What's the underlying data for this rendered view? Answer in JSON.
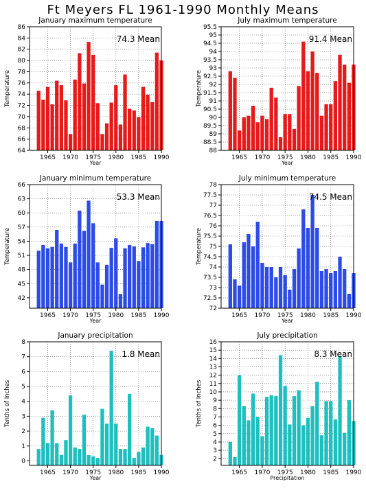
{
  "page_title": "Ft Meyers FL  1961-1990 Monthly Means",
  "colors": {
    "red": "#e61a1a",
    "blue": "#2d4be6",
    "teal": "#1fbfbf"
  },
  "chart_data": [
    {
      "type": "bar",
      "title": "January maximum temperature",
      "ylabel": "Temperature",
      "xlabel": "Year",
      "mean_label": "74.3 Mean",
      "color": "#e61a1a",
      "x": [
        1961,
        1962,
        1963,
        1964,
        1965,
        1966,
        1967,
        1968,
        1969,
        1970,
        1971,
        1972,
        1973,
        1974,
        1975,
        1976,
        1977,
        1978,
        1979,
        1980,
        1981,
        1982,
        1983,
        1984,
        1985,
        1986,
        1987,
        1988,
        1989,
        1990
      ],
      "values": [
        null,
        null,
        74.6,
        73.0,
        75.3,
        72.2,
        76.4,
        75.6,
        72.9,
        66.9,
        76.6,
        81.3,
        75.9,
        83.3,
        81.0,
        72.4,
        66.9,
        68.8,
        72.5,
        75.6,
        68.6,
        77.5,
        71.4,
        71.1,
        69.9,
        75.3,
        73.9,
        72.6,
        81.4,
        80.0
      ],
      "ylim": [
        64,
        86
      ],
      "yticks": [
        64,
        66,
        68,
        70,
        72,
        74,
        76,
        78,
        80,
        82,
        84,
        86
      ],
      "xlim": [
        1961,
        1990
      ],
      "xticks": [
        1965,
        1970,
        1975,
        1980,
        1985,
        1990
      ]
    },
    {
      "type": "bar",
      "title": "July maximum temperature",
      "ylabel": "Temperature",
      "xlabel": "Year",
      "mean_label": "91.4 Mean",
      "color": "#e61a1a",
      "x": [
        1961,
        1962,
        1963,
        1964,
        1965,
        1966,
        1967,
        1968,
        1969,
        1970,
        1971,
        1972,
        1973,
        1974,
        1975,
        1976,
        1977,
        1978,
        1979,
        1980,
        1981,
        1982,
        1983,
        1984,
        1985,
        1986,
        1987,
        1988,
        1989,
        1990
      ],
      "values": [
        null,
        null,
        92.8,
        92.4,
        89.2,
        90.0,
        90.1,
        90.7,
        89.7,
        90.1,
        89.9,
        91.8,
        91.2,
        88.8,
        90.2,
        90.2,
        89.3,
        91.9,
        94.6,
        92.8,
        94.0,
        92.7,
        90.1,
        90.8,
        90.8,
        92.2,
        93.8,
        93.2,
        92.1,
        93.2
      ],
      "ylim": [
        88,
        95.5
      ],
      "yticks": [
        88,
        88.5,
        89,
        89.5,
        90,
        90.5,
        91,
        91.5,
        92,
        92.5,
        93,
        93.5,
        94,
        94.5,
        95,
        95.5
      ],
      "xlim": [
        1961,
        1990
      ],
      "xticks": [
        1965,
        1970,
        1975,
        1980,
        1985,
        1990
      ]
    },
    {
      "type": "bar",
      "title": "January minimum temperature",
      "ylabel": "Temperature",
      "xlabel": "Year",
      "mean_label": "53.3 Mean",
      "color": "#2d4be6",
      "x": [
        1961,
        1962,
        1963,
        1964,
        1965,
        1966,
        1967,
        1968,
        1969,
        1970,
        1971,
        1972,
        1973,
        1974,
        1975,
        1976,
        1977,
        1978,
        1979,
        1980,
        1981,
        1982,
        1983,
        1984,
        1985,
        1986,
        1987,
        1988,
        1989,
        1990
      ],
      "values": [
        null,
        null,
        52.0,
        53.2,
        52.5,
        52.8,
        56.4,
        53.5,
        52.8,
        49.5,
        53.5,
        60.5,
        56.2,
        62.6,
        57.8,
        49.5,
        44.8,
        49.0,
        52.6,
        54.6,
        42.8,
        52.5,
        53.2,
        52.9,
        49.8,
        52.7,
        53.6,
        53.4,
        58.3,
        58.3
      ],
      "ylim": [
        39.8,
        66
      ],
      "yticks": [
        42,
        45,
        48,
        51,
        54,
        57,
        60,
        63,
        66
      ],
      "xlim": [
        1961,
        1990
      ],
      "xticks": [
        1965,
        1970,
        1975,
        1980,
        1985,
        1990
      ]
    },
    {
      "type": "bar",
      "title": "July minimum temperature",
      "ylabel": "Temperature",
      "xlabel": "Year",
      "mean_label": "74.5 Mean",
      "color": "#2d4be6",
      "x": [
        1961,
        1962,
        1963,
        1964,
        1965,
        1966,
        1967,
        1968,
        1969,
        1970,
        1971,
        1972,
        1973,
        1974,
        1975,
        1976,
        1977,
        1978,
        1979,
        1980,
        1981,
        1982,
        1983,
        1984,
        1985,
        1986,
        1987,
        1988,
        1989,
        1990
      ],
      "values": [
        null,
        null,
        75.1,
        73.4,
        73.1,
        75.2,
        75.6,
        75.0,
        76.2,
        74.2,
        74.0,
        74.0,
        73.5,
        74.0,
        73.6,
        72.9,
        73.9,
        74.9,
        76.8,
        75.9,
        77.5,
        75.9,
        73.8,
        73.9,
        73.7,
        73.8,
        74.5,
        73.9,
        72.7,
        73.7
      ],
      "ylim": [
        72,
        78
      ],
      "yticks": [
        72,
        72.5,
        73,
        73.5,
        74,
        74.5,
        75,
        75.5,
        76,
        76.5,
        77,
        77.5,
        78
      ],
      "xlim": [
        1961,
        1990
      ],
      "xticks": [
        1965,
        1970,
        1975,
        1980,
        1985,
        1990
      ]
    },
    {
      "type": "bar",
      "title": "January precipitation",
      "ylabel": "Tenths of Inches",
      "xlabel": "Year",
      "mean_label": "1.8 Mean",
      "color": "#1fbfbf",
      "x": [
        1961,
        1962,
        1963,
        1964,
        1965,
        1966,
        1967,
        1968,
        1969,
        1970,
        1971,
        1972,
        1973,
        1974,
        1975,
        1976,
        1977,
        1978,
        1979,
        1980,
        1981,
        1982,
        1983,
        1984,
        1985,
        1986,
        1987,
        1988,
        1989,
        1990
      ],
      "values": [
        null,
        null,
        0.8,
        2.9,
        1.2,
        3.4,
        1.2,
        0.4,
        1.4,
        4.4,
        0.9,
        0.8,
        3.1,
        0.4,
        0.3,
        0.2,
        3.5,
        2.5,
        7.4,
        2.5,
        0.8,
        0.8,
        4.5,
        0.2,
        0.6,
        0.9,
        2.3,
        2.2,
        1.7,
        0.4
      ],
      "ylim": [
        -0.3,
        8
      ],
      "yticks": [
        0,
        1,
        2,
        3,
        4,
        5,
        6,
        7,
        8
      ],
      "xlim": [
        1961,
        1990
      ],
      "xticks": [
        1965,
        1970,
        1975,
        1980,
        1985,
        1990
      ]
    },
    {
      "type": "bar",
      "title": "July precipitation",
      "ylabel": "Tenths of Inches",
      "xlabel": "Precipitation",
      "mean_label": "8.3 Mean",
      "color": "#1fbfbf",
      "x": [
        1961,
        1962,
        1963,
        1964,
        1965,
        1966,
        1967,
        1968,
        1969,
        1970,
        1971,
        1972,
        1973,
        1974,
        1975,
        1976,
        1977,
        1978,
        1979,
        1980,
        1981,
        1982,
        1983,
        1984,
        1985,
        1986,
        1987,
        1988,
        1989,
        1990
      ],
      "values": [
        null,
        null,
        4.0,
        2.2,
        12.0,
        8.3,
        6.6,
        9.8,
        7.0,
        4.7,
        9.4,
        9.6,
        9.5,
        14.4,
        10.7,
        6.1,
        9.5,
        10.2,
        6.0,
        6.9,
        8.3,
        11.2,
        4.8,
        8.9,
        8.9,
        6.7,
        14.3,
        5.1,
        9.0,
        6.5
      ],
      "ylim": [
        1.2,
        16
      ],
      "yticks": [
        2,
        3,
        4,
        5,
        6,
        7,
        8,
        9,
        10,
        11,
        12,
        13,
        14,
        15,
        16
      ],
      "xlim": [
        1961,
        1990
      ],
      "xticks": [
        1965,
        1970,
        1975,
        1980,
        1985,
        1990
      ]
    }
  ]
}
